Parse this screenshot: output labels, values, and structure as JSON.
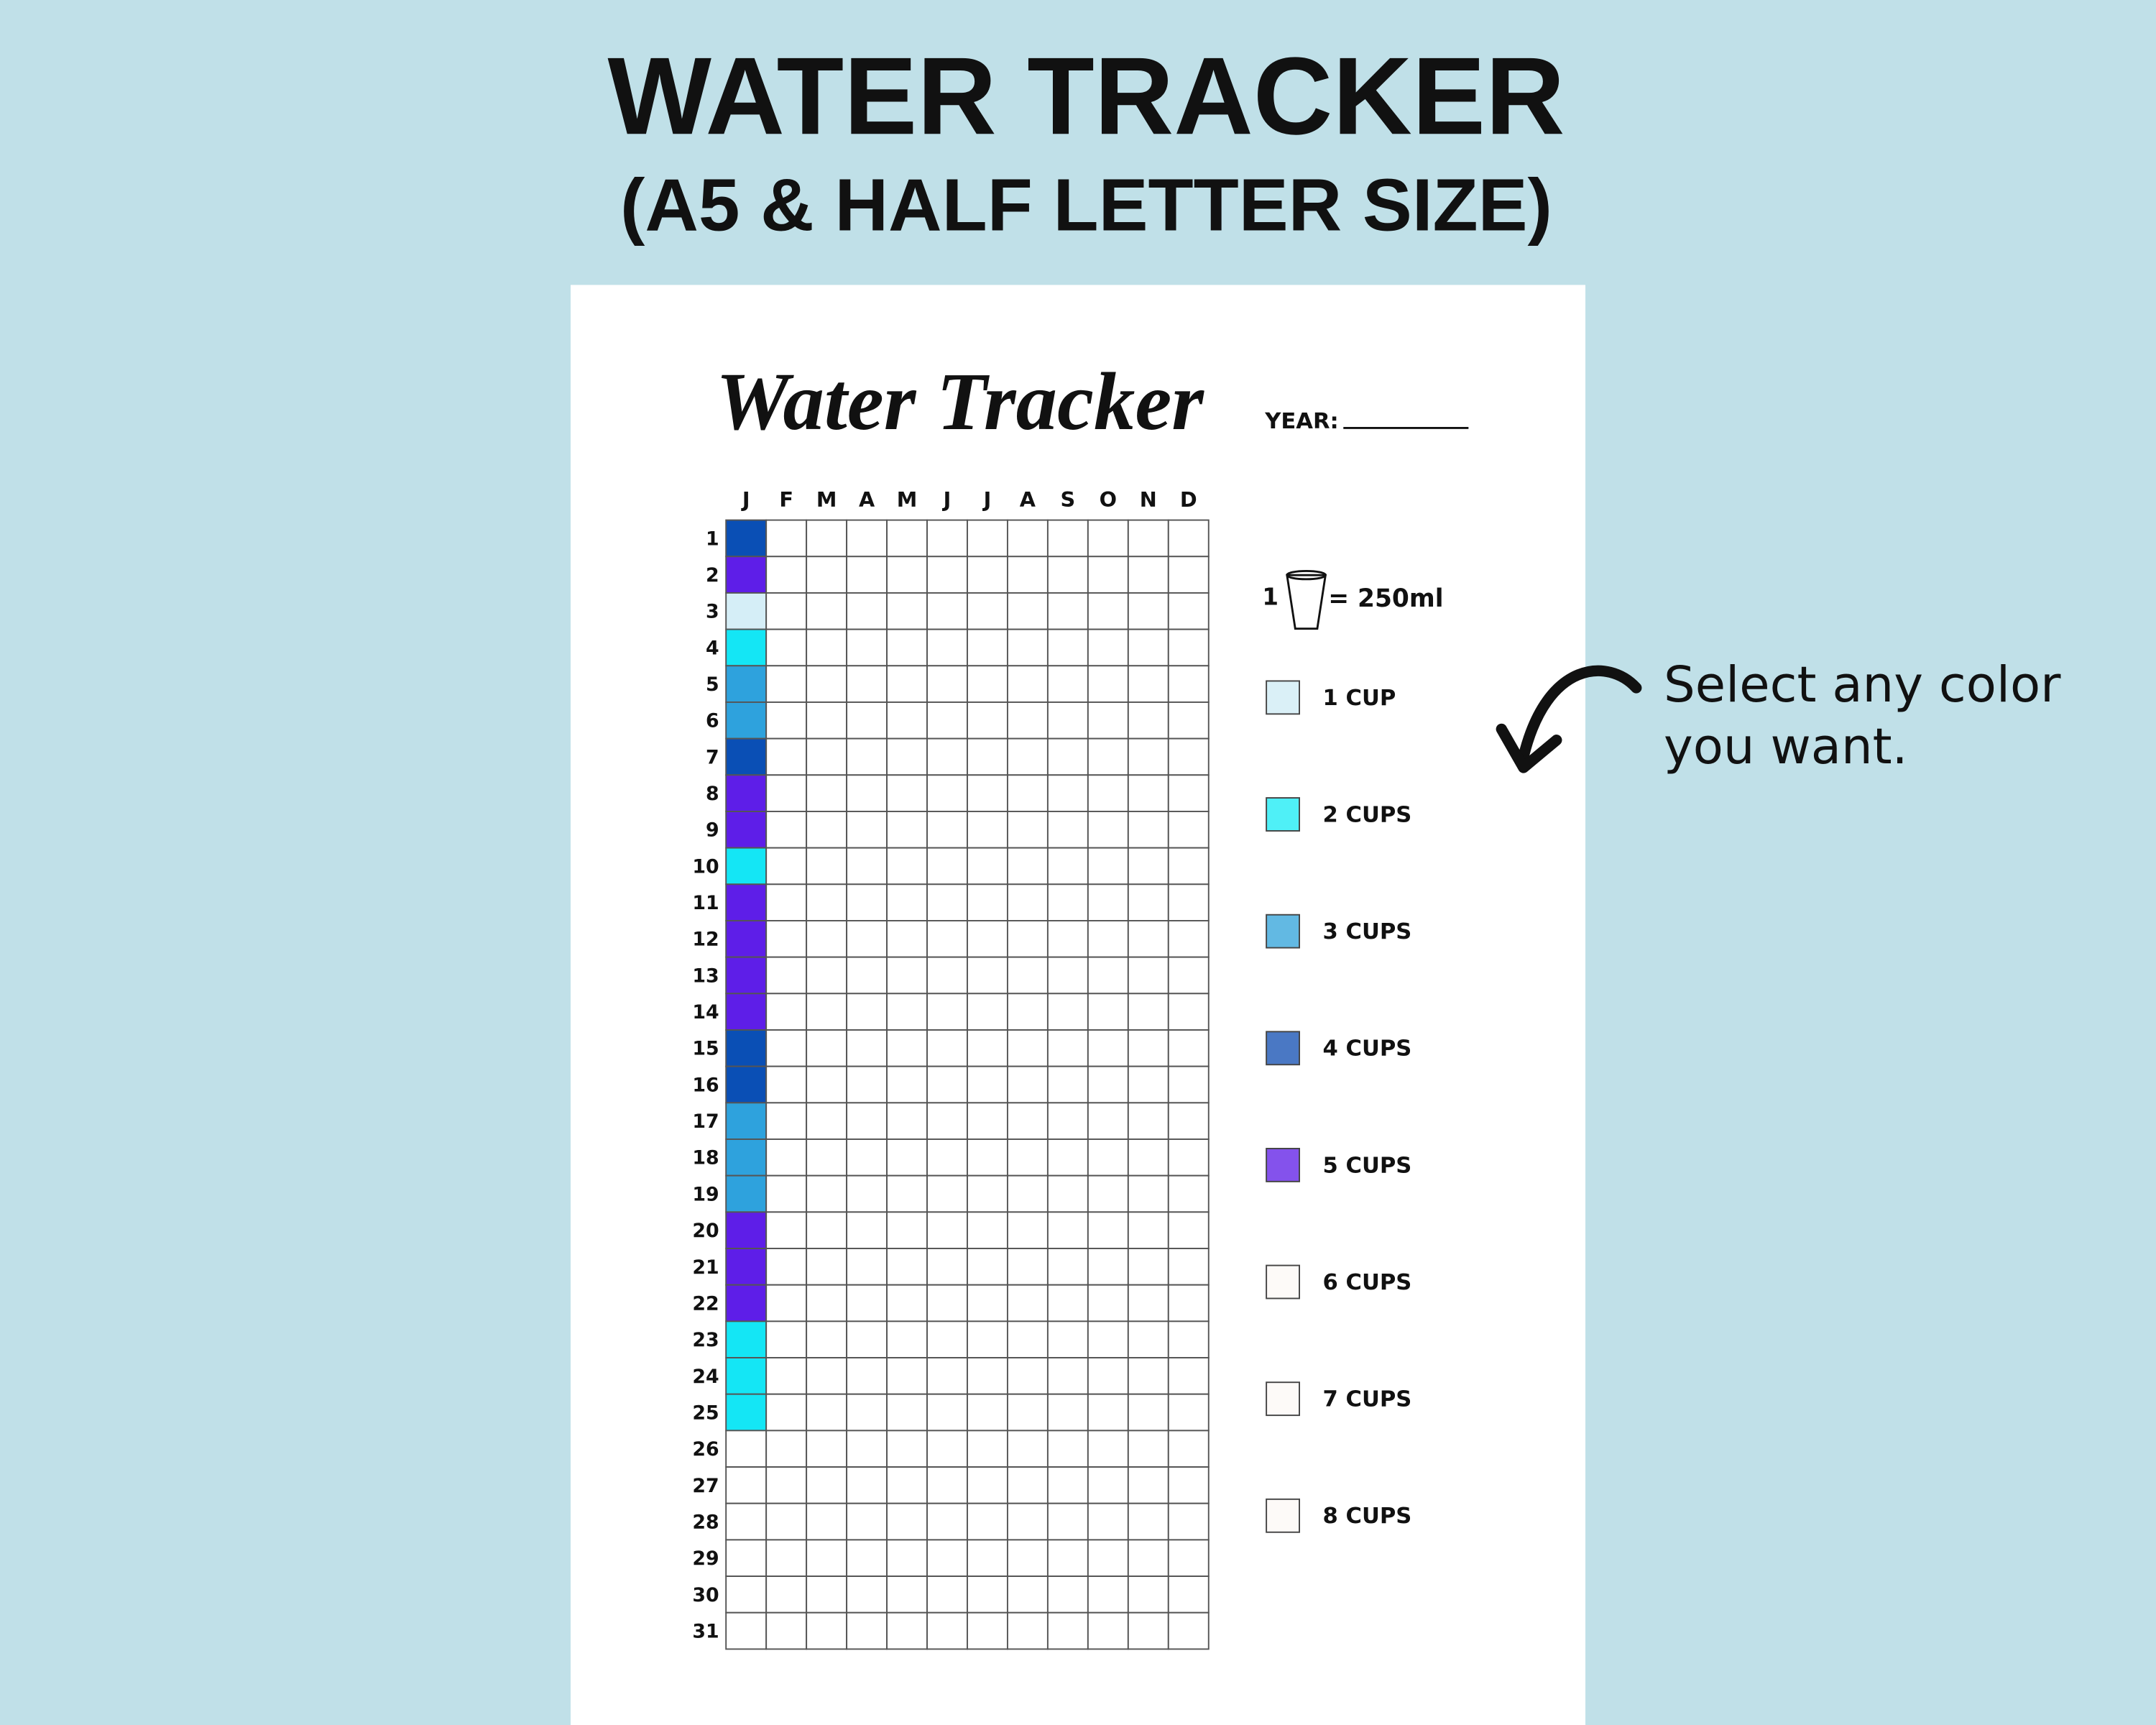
{
  "header": {
    "title": "WATER TRACKER",
    "subtitle": "(A5 & HALF LETTER SIZE)"
  },
  "sheet": {
    "title": "Water Tracker",
    "year_label": "YEAR:",
    "months": [
      "J",
      "F",
      "M",
      "A",
      "M",
      "J",
      "J",
      "A",
      "S",
      "O",
      "N",
      "D"
    ],
    "days": [
      1,
      2,
      3,
      4,
      5,
      6,
      7,
      8,
      9,
      10,
      11,
      12,
      13,
      14,
      15,
      16,
      17,
      18,
      19,
      20,
      21,
      22,
      23,
      24,
      25,
      26,
      27,
      28,
      29,
      30,
      31
    ],
    "filled_colors": [
      "#0a4fb5",
      "#5e1ee8",
      "#d5eef7",
      "#14e6f5",
      "#2ea2dd",
      "#2ea2dd",
      "#0a4fb5",
      "#5e1ee8",
      "#5e1ee8",
      "#14e6f5",
      "#5e1ee8",
      "#5e1ee8",
      "#5e1ee8",
      "#5e1ee8",
      "#0a4fb5",
      "#0a4fb5",
      "#2ea2dd",
      "#2ea2dd",
      "#2ea2dd",
      "#5e1ee8",
      "#5e1ee8",
      "#5e1ee8",
      "#14e6f5",
      "#14e6f5",
      "#14e6f5"
    ],
    "cup_note": {
      "count": "1",
      "equivalent": "= 250ml"
    },
    "legend": [
      {
        "label": "1 CUP",
        "color": "#daf0f7"
      },
      {
        "label": "2 CUPS",
        "color": "#4ff0f7"
      },
      {
        "label": "3 CUPS",
        "color": "#62b9e3"
      },
      {
        "label": "4 CUPS",
        "color": "#4a78c4"
      },
      {
        "label": "5 CUPS",
        "color": "#8452ec"
      },
      {
        "label": "6 CUPS",
        "color": "#fdfaf8"
      },
      {
        "label": "7 CUPS",
        "color": "#fdfaf8"
      },
      {
        "label": "8 CUPS",
        "color": "#fdfaf8"
      }
    ]
  },
  "annotation": [
    "Select any color",
    "you want."
  ]
}
